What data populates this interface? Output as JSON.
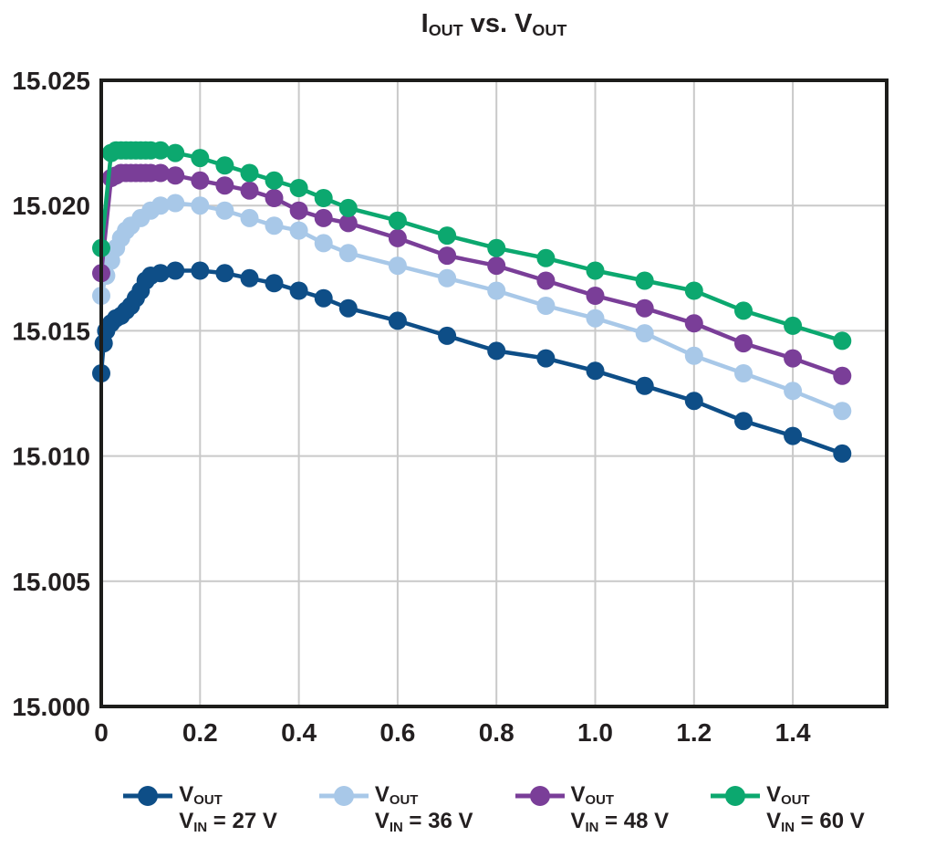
{
  "title": {
    "p1": "I",
    "p1_sub": "OUT",
    "mid": " vs. ",
    "p2": "V",
    "p2_sub": "OUT"
  },
  "colors": {
    "frame": "#1d1d1b",
    "grid": "#c9c9c9",
    "text": "#231f20",
    "series_27v": "#0e4e87",
    "series_36v": "#a8c8e8",
    "series_48v": "#7a3e98",
    "series_60v": "#0ca86f"
  },
  "chart_data": {
    "type": "line",
    "title": "IOUT vs. VOUT",
    "xlabel": "",
    "ylabel": "",
    "xlim": [
      0,
      1.59
    ],
    "ylim": [
      15.0,
      15.025
    ],
    "grid": true,
    "legend_position": "bottom",
    "x_ticks": {
      "values": [
        0,
        0.2,
        0.4,
        0.6,
        0.8,
        1.0,
        1.2,
        1.4
      ],
      "labels": [
        "0",
        "0.2",
        "0.4",
        "0.6",
        "0.8",
        "1.0",
        "1.2",
        "1.4"
      ]
    },
    "y_ticks": {
      "values": [
        15.0,
        15.005,
        15.01,
        15.015,
        15.02,
        15.025
      ],
      "labels": [
        "15.000",
        "15.005",
        "15.010",
        "15.015",
        "15.020",
        "15.025"
      ]
    },
    "series": [
      {
        "name": "VOUT, VIN = 27 V",
        "color_key": "series_27v",
        "x": [
          0,
          0.005,
          0.01,
          0.02,
          0.03,
          0.04,
          0.05,
          0.06,
          0.07,
          0.08,
          0.09,
          0.1,
          0.12,
          0.15,
          0.2,
          0.25,
          0.3,
          0.35,
          0.4,
          0.45,
          0.5,
          0.6,
          0.7,
          0.8,
          0.9,
          1.0,
          1.1,
          1.2,
          1.3,
          1.4,
          1.5
        ],
        "y": [
          15.0133,
          15.0145,
          15.015,
          15.0153,
          15.0155,
          15.0156,
          15.0158,
          15.016,
          15.0163,
          15.0166,
          15.017,
          15.0172,
          15.0173,
          15.0174,
          15.0174,
          15.0173,
          15.0171,
          15.0169,
          15.0166,
          15.0163,
          15.0159,
          15.0154,
          15.0148,
          15.0142,
          15.0139,
          15.0134,
          15.0128,
          15.0122,
          15.0114,
          15.0108,
          15.0101
        ]
      },
      {
        "name": "VOUT, VIN = 36 V",
        "color_key": "series_36v",
        "x": [
          0,
          0.01,
          0.02,
          0.03,
          0.04,
          0.05,
          0.06,
          0.08,
          0.1,
          0.12,
          0.15,
          0.2,
          0.25,
          0.3,
          0.35,
          0.4,
          0.45,
          0.5,
          0.6,
          0.7,
          0.8,
          0.9,
          1.0,
          1.1,
          1.2,
          1.3,
          1.4,
          1.5
        ],
        "y": [
          15.0164,
          15.0172,
          15.0178,
          15.0183,
          15.0187,
          15.019,
          15.0192,
          15.0195,
          15.0198,
          15.02,
          15.0201,
          15.02,
          15.0198,
          15.0195,
          15.0192,
          15.019,
          15.0185,
          15.0181,
          15.0176,
          15.0171,
          15.0166,
          15.016,
          15.0155,
          15.0149,
          15.014,
          15.0133,
          15.0126,
          15.0118
        ]
      },
      {
        "name": "VOUT, VIN = 48 V",
        "color_key": "series_48v",
        "x": [
          0,
          0.02,
          0.03,
          0.04,
          0.05,
          0.06,
          0.07,
          0.08,
          0.09,
          0.1,
          0.12,
          0.15,
          0.2,
          0.25,
          0.3,
          0.35,
          0.4,
          0.45,
          0.5,
          0.6,
          0.7,
          0.8,
          0.9,
          1.0,
          1.1,
          1.2,
          1.3,
          1.4,
          1.5
        ],
        "y": [
          15.0173,
          15.0211,
          15.0212,
          15.0213,
          15.0213,
          15.0213,
          15.0213,
          15.0213,
          15.0213,
          15.0213,
          15.0213,
          15.0212,
          15.021,
          15.0208,
          15.0206,
          15.0203,
          15.0198,
          15.0195,
          15.0193,
          15.0187,
          15.018,
          15.0176,
          15.017,
          15.0164,
          15.0159,
          15.0153,
          15.0145,
          15.0139,
          15.0132
        ]
      },
      {
        "name": "VOUT, VIN = 60 V",
        "color_key": "series_60v",
        "x": [
          0,
          0.02,
          0.03,
          0.04,
          0.05,
          0.06,
          0.07,
          0.08,
          0.09,
          0.1,
          0.12,
          0.15,
          0.2,
          0.25,
          0.3,
          0.35,
          0.4,
          0.45,
          0.5,
          0.6,
          0.7,
          0.8,
          0.9,
          1.0,
          1.1,
          1.2,
          1.3,
          1.4,
          1.5
        ],
        "y": [
          15.0183,
          15.0221,
          15.0222,
          15.0222,
          15.0222,
          15.0222,
          15.0222,
          15.0222,
          15.0222,
          15.0222,
          15.0222,
          15.0221,
          15.0219,
          15.0216,
          15.0213,
          15.021,
          15.0207,
          15.0203,
          15.0199,
          15.0194,
          15.0188,
          15.0183,
          15.0179,
          15.0174,
          15.017,
          15.0166,
          15.0158,
          15.0152,
          15.0146
        ]
      }
    ]
  },
  "legend": {
    "entries": [
      {
        "sym": "V",
        "sym_sub": "OUT",
        "cond_pre": "V",
        "cond_sub": "IN",
        "cond_post": " = 27 V",
        "color_key": "series_27v"
      },
      {
        "sym": "V",
        "sym_sub": "OUT",
        "cond_pre": "V",
        "cond_sub": "IN",
        "cond_post": " = 36 V",
        "color_key": "series_36v"
      },
      {
        "sym": "V",
        "sym_sub": "OUT",
        "cond_pre": "V",
        "cond_sub": "IN",
        "cond_post": " = 48 V",
        "color_key": "series_48v"
      },
      {
        "sym": "V",
        "sym_sub": "OUT",
        "cond_pre": "V",
        "cond_sub": "IN",
        "cond_post": " = 60 V",
        "color_key": "series_60v"
      }
    ]
  }
}
